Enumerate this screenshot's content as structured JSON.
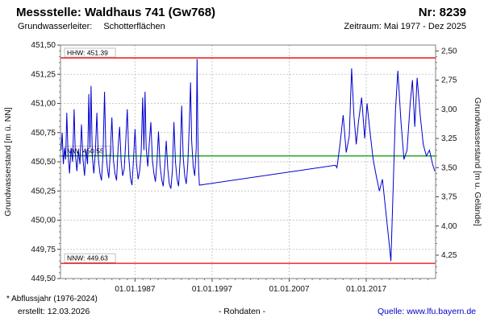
{
  "header": {
    "title": "Messstelle: Waldhaus 741 (Gw768)",
    "number": "Nr: 8239",
    "aquifer_label": "Grundwasserleiter:",
    "aquifer_value": "Schotterflächen",
    "period": "Zeitraum: Mai 1977 - Dez 2025"
  },
  "footer": {
    "note": "* Abflussjahr (1976-2024)",
    "created": "erstellt:  12.03.2026",
    "center": "- Rohdaten -",
    "source": "Quelle: www.lfu.bayern.de",
    "link_color": "#0000cc"
  },
  "chart_data": {
    "type": "line",
    "title": "",
    "ylabel_left": "Grundwasserstand [m ü. NN]",
    "ylabel_right": "Grundwasserstand [m u. Gelände]",
    "xlim": [
      1977.33,
      2026.0
    ],
    "ylim": [
      449.5,
      451.5
    ],
    "y_tick_step": 0.25,
    "y_minor_step": 0.05,
    "grid": true,
    "x_ticks": [
      {
        "year": 1987.0,
        "label": "01.01.1987"
      },
      {
        "year": 1997.0,
        "label": "01.01.1997"
      },
      {
        "year": 2007.0,
        "label": "01.01.2007"
      },
      {
        "year": 2017.0,
        "label": "01.01.2017"
      }
    ],
    "right_axis": {
      "ground_elevation": 453.95,
      "tick_min": 2.5,
      "tick_max": 4.25,
      "tick_step": 0.25
    },
    "reference_lines": [
      {
        "name": "HHW",
        "label": "HHW: 451.39",
        "value": 451.39,
        "color": "#f00000"
      },
      {
        "name": "MW",
        "label": "MW: 450.55",
        "value": 450.55,
        "color": "#009600"
      },
      {
        "name": "NNW",
        "label": "NNW: 449.63",
        "value": 449.63,
        "color": "#f00000"
      }
    ],
    "series": [
      {
        "name": "Grundwasserstand Rohdaten",
        "color": "#0000cd",
        "x": [
          1977.4,
          1977.55,
          1977.7,
          1977.85,
          1978.0,
          1978.15,
          1978.3,
          1978.5,
          1978.7,
          1978.9,
          1979.1,
          1979.25,
          1979.45,
          1979.65,
          1979.85,
          1980.05,
          1980.25,
          1980.45,
          1980.65,
          1980.85,
          1981.0,
          1981.15,
          1981.3,
          1981.45,
          1981.65,
          1981.85,
          1982.05,
          1982.25,
          1982.45,
          1982.65,
          1982.85,
          1983.05,
          1983.2,
          1983.4,
          1983.6,
          1983.8,
          1984.0,
          1984.2,
          1984.4,
          1984.6,
          1984.8,
          1985.0,
          1985.2,
          1985.4,
          1985.6,
          1985.8,
          1986.0,
          1986.2,
          1986.4,
          1986.6,
          1986.8,
          1987.0,
          1987.2,
          1987.4,
          1987.6,
          1987.8,
          1988.0,
          1988.15,
          1988.3,
          1988.45,
          1988.65,
          1988.85,
          1989.05,
          1989.25,
          1989.45,
          1989.65,
          1989.85,
          1990.05,
          1990.25,
          1990.45,
          1990.65,
          1990.85,
          1991.05,
          1991.25,
          1991.45,
          1991.65,
          1991.85,
          1992.05,
          1992.25,
          1992.45,
          1992.65,
          1992.85,
          1993.05,
          1993.25,
          1993.45,
          1993.65,
          1993.85,
          1994.05,
          1994.2,
          1994.35,
          1994.55,
          1994.75,
          1994.95,
          1995.05,
          1995.15,
          1995.25,
          1995.35,
          2013.0,
          2013.2,
          2013.6,
          2014.0,
          2014.4,
          2014.8,
          2015.1,
          2015.4,
          2015.7,
          2016.0,
          2016.4,
          2016.8,
          2017.1,
          2017.5,
          2017.9,
          2018.3,
          2018.7,
          2019.1,
          2019.5,
          2019.9,
          2020.2,
          2020.5,
          2020.8,
          2021.1,
          2021.5,
          2021.9,
          2022.3,
          2022.7,
          2023.0,
          2023.3,
          2023.6,
          2024.0,
          2024.4,
          2024.8,
          2025.2,
          2025.6,
          2025.9
        ],
        "y": [
          450.6,
          450.75,
          450.48,
          450.62,
          450.52,
          450.92,
          450.58,
          450.4,
          450.62,
          450.5,
          450.95,
          450.58,
          450.42,
          450.6,
          450.48,
          450.82,
          450.52,
          450.38,
          450.6,
          450.48,
          451.08,
          450.62,
          451.15,
          450.55,
          450.4,
          450.58,
          450.92,
          450.52,
          450.4,
          450.34,
          450.56,
          451.1,
          450.62,
          450.45,
          450.36,
          450.58,
          450.88,
          450.52,
          450.4,
          450.34,
          450.62,
          450.8,
          450.5,
          450.38,
          450.44,
          450.68,
          450.95,
          450.54,
          450.36,
          450.3,
          450.52,
          450.78,
          450.48,
          450.35,
          450.42,
          450.58,
          451.05,
          450.6,
          451.1,
          450.62,
          450.46,
          450.66,
          450.84,
          450.52,
          450.4,
          450.33,
          450.5,
          450.76,
          450.47,
          450.35,
          450.29,
          450.46,
          450.68,
          450.44,
          450.31,
          450.27,
          450.42,
          450.84,
          450.5,
          450.35,
          450.29,
          450.52,
          450.98,
          450.54,
          450.38,
          450.31,
          450.48,
          450.82,
          451.18,
          450.68,
          450.46,
          450.38,
          450.62,
          451.38,
          450.72,
          450.44,
          450.3,
          450.47,
          450.45,
          450.65,
          450.9,
          450.58,
          450.72,
          451.3,
          450.9,
          450.65,
          450.85,
          451.05,
          450.7,
          451.0,
          450.75,
          450.52,
          450.38,
          450.25,
          450.35,
          450.1,
          449.85,
          449.65,
          450.3,
          450.95,
          451.28,
          450.85,
          450.52,
          450.6,
          451.0,
          451.2,
          450.8,
          451.22,
          450.9,
          450.65,
          450.55,
          450.6,
          450.48,
          450.42
        ]
      }
    ]
  }
}
